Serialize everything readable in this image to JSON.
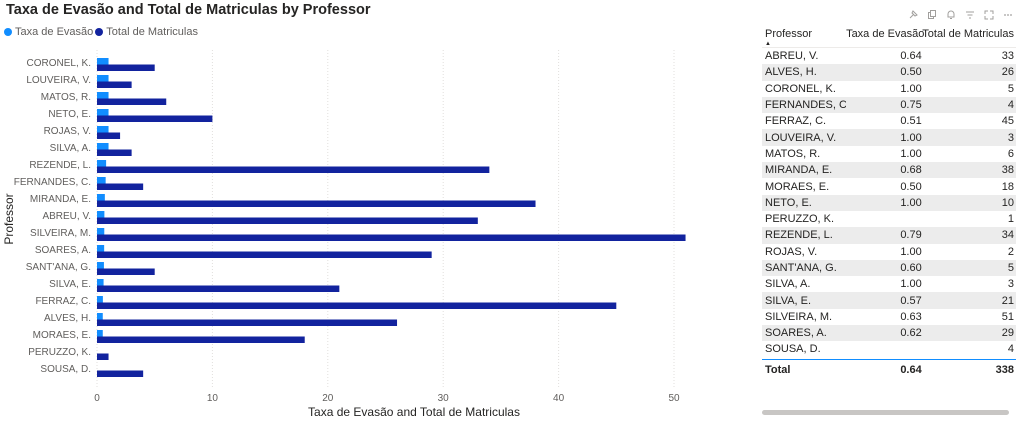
{
  "title": "Taxa de Evasão and Total de Matriculas by Professor",
  "legend": [
    {
      "label": "Taxa de Evasão",
      "color": "#118dff"
    },
    {
      "label": "Total de Matriculas",
      "color": "#12239e"
    }
  ],
  "toolbar_icons": [
    "pin-icon",
    "copy-icon",
    "bell-icon",
    "filter-icon",
    "focus-mode-icon",
    "more-options-icon"
  ],
  "chart_data": {
    "type": "bar",
    "orientation": "horizontal",
    "title": "Taxa de Evasão and Total de Matriculas by Professor",
    "xlabel": "Taxa de Evasão and Total de Matriculas",
    "ylabel": "Professor",
    "xlim": [
      0,
      52
    ],
    "xticks": [
      0,
      10,
      20,
      30,
      40,
      50
    ],
    "grid": true,
    "legend_position": "top-left",
    "categories": [
      "CORONEL, K.",
      "LOUVEIRA, V.",
      "MATOS, R.",
      "NETO, E.",
      "ROJAS, V.",
      "SILVA, A.",
      "REZENDE, L.",
      "FERNANDES, C.",
      "MIRANDA, E.",
      "ABREU, V.",
      "SILVEIRA, M.",
      "SOARES, A.",
      "SANT'ANA, G.",
      "SILVA, E.",
      "FERRAZ, C.",
      "ALVES, H.",
      "MORAES, E.",
      "PERUZZO, K.",
      "SOUSA, D."
    ],
    "series": [
      {
        "name": "Taxa de Evasão",
        "color": "#118dff",
        "values": [
          1.0,
          1.0,
          1.0,
          1.0,
          1.0,
          1.0,
          0.79,
          0.75,
          0.68,
          0.64,
          0.63,
          0.62,
          0.6,
          0.57,
          0.51,
          0.5,
          0.5,
          null,
          null
        ]
      },
      {
        "name": "Total de Matriculas",
        "color": "#12239e",
        "values": [
          5,
          3,
          6,
          10,
          2,
          3,
          34,
          4,
          38,
          33,
          51,
          29,
          5,
          21,
          45,
          26,
          18,
          1,
          4
        ]
      }
    ]
  },
  "table": {
    "headers": [
      "Professor",
      "Taxa de Evasão",
      "Total de Matriculas"
    ],
    "rows": [
      [
        "ABREU, V.",
        "0.64",
        "33"
      ],
      [
        "ALVES, H.",
        "0.50",
        "26"
      ],
      [
        "CORONEL, K.",
        "1.00",
        "5"
      ],
      [
        "FERNANDES, C.",
        "0.75",
        "4"
      ],
      [
        "FERRAZ, C.",
        "0.51",
        "45"
      ],
      [
        "LOUVEIRA, V.",
        "1.00",
        "3"
      ],
      [
        "MATOS, R.",
        "1.00",
        "6"
      ],
      [
        "MIRANDA, E.",
        "0.68",
        "38"
      ],
      [
        "MORAES, E.",
        "0.50",
        "18"
      ],
      [
        "NETO, E.",
        "1.00",
        "10"
      ],
      [
        "PERUZZO, K.",
        "",
        "1"
      ],
      [
        "REZENDE, L.",
        "0.79",
        "34"
      ],
      [
        "ROJAS, V.",
        "1.00",
        "2"
      ],
      [
        "SANT'ANA, G.",
        "0.60",
        "5"
      ],
      [
        "SILVA, A.",
        "1.00",
        "3"
      ],
      [
        "SILVA, E.",
        "0.57",
        "21"
      ],
      [
        "SILVEIRA, M.",
        "0.63",
        "51"
      ],
      [
        "SOARES, A.",
        "0.62",
        "29"
      ],
      [
        "SOUSA, D.",
        "",
        "4"
      ]
    ],
    "total": [
      "Total",
      "0.64",
      "338"
    ]
  }
}
